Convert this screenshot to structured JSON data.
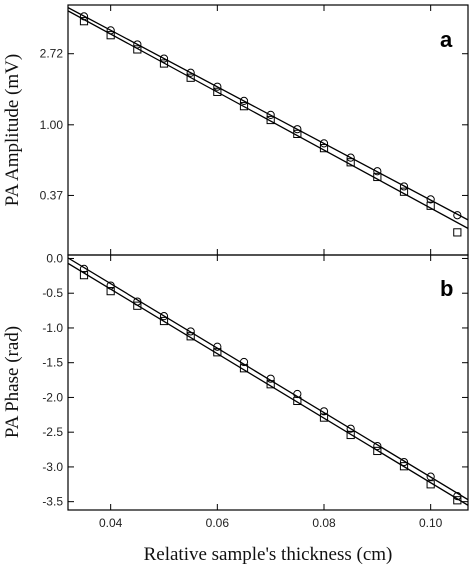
{
  "chart_data": [
    {
      "type": "scatter",
      "panel_label": "a",
      "ylabel": "PA Amplitude (mV)",
      "y_scale": "log",
      "y_tick_labels": [
        "0.37",
        "1.00",
        "2.72"
      ],
      "y_tick_values": [
        0.37,
        1.0,
        2.72
      ],
      "ylim": [
        0.16,
        5.4
      ],
      "xlim": [
        0.032,
        0.107
      ],
      "series": [
        {
          "marker": "circle",
          "x": [
            0.035,
            0.04,
            0.045,
            0.05,
            0.055,
            0.06,
            0.065,
            0.07,
            0.075,
            0.08,
            0.085,
            0.09,
            0.095,
            0.1,
            0.105
          ],
          "y": [
            4.6,
            3.78,
            3.1,
            2.54,
            2.08,
            1.71,
            1.4,
            1.15,
            0.94,
            0.77,
            0.63,
            0.52,
            0.42,
            0.35,
            0.28
          ]
        },
        {
          "marker": "square",
          "x": [
            0.035,
            0.04,
            0.045,
            0.05,
            0.055,
            0.06,
            0.065,
            0.07,
            0.075,
            0.08,
            0.085,
            0.09,
            0.095,
            0.1,
            0.105
          ],
          "y": [
            4.3,
            3.53,
            2.89,
            2.37,
            1.94,
            1.59,
            1.3,
            1.07,
            0.88,
            0.72,
            0.59,
            0.48,
            0.39,
            0.32,
            0.22
          ]
        }
      ],
      "fit_lines": true
    },
    {
      "type": "scatter",
      "panel_label": "b",
      "ylabel": "PA Phase (rad)",
      "xlabel": "Relative sample's thickness (cm)",
      "x_tick_labels": [
        "0.04",
        "0.06",
        "0.08",
        "0.10"
      ],
      "x_tick_values": [
        0.04,
        0.06,
        0.08,
        0.1
      ],
      "y_tick_labels": [
        "0.0",
        "-0.5",
        "-1.0",
        "-1.5",
        "-2.0",
        "-2.5",
        "-3.0",
        "-3.5"
      ],
      "y_tick_values": [
        0.0,
        -0.5,
        -1.0,
        -1.5,
        -2.0,
        -2.5,
        -3.0,
        -3.5
      ],
      "ylim": [
        -3.62,
        0.05
      ],
      "xlim": [
        0.032,
        0.107
      ],
      "series": [
        {
          "marker": "circle",
          "x": [
            0.035,
            0.04,
            0.045,
            0.05,
            0.055,
            0.06,
            0.065,
            0.07,
            0.075,
            0.08,
            0.085,
            0.09,
            0.095,
            0.1,
            0.105
          ],
          "y": [
            -0.15,
            -0.39,
            -0.62,
            -0.83,
            -1.05,
            -1.27,
            -1.49,
            -1.73,
            -1.95,
            -2.2,
            -2.45,
            -2.7,
            -2.93,
            -3.14,
            -3.42
          ]
        },
        {
          "marker": "square",
          "x": [
            0.035,
            0.04,
            0.045,
            0.05,
            0.055,
            0.06,
            0.065,
            0.07,
            0.075,
            0.08,
            0.085,
            0.09,
            0.095,
            0.1,
            0.105
          ],
          "y": [
            -0.24,
            -0.47,
            -0.68,
            -0.9,
            -1.12,
            -1.35,
            -1.58,
            -1.81,
            -2.05,
            -2.29,
            -2.54,
            -2.77,
            -2.99,
            -3.25,
            -3.48
          ]
        }
      ],
      "fit_lines": true
    }
  ]
}
